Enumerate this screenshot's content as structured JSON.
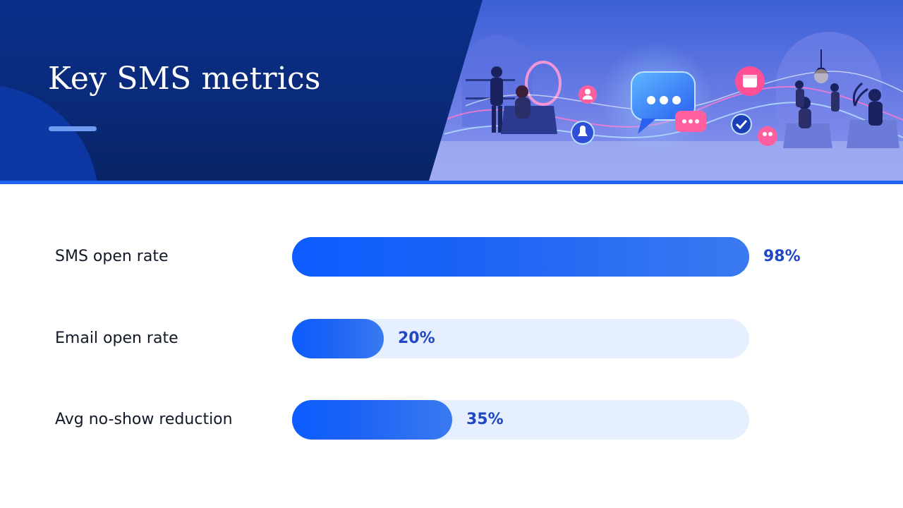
{
  "header": {
    "title": "Key SMS metrics"
  },
  "colors": {
    "header_bg": "#0a2a7a",
    "accent": "#1e62f0",
    "bar_fill": "#1c63f5",
    "track": "#e6effd",
    "value_text": "#1f47c4",
    "label_text": "#111827"
  },
  "illustration": {
    "icons": [
      "chat-bubble-icon",
      "calendar-icon",
      "bell-icon",
      "user-icon",
      "check-icon",
      "group-icon"
    ]
  },
  "chart_data": {
    "type": "bar",
    "orientation": "horizontal",
    "title": "",
    "xlim": [
      0,
      100
    ],
    "grid": false,
    "categories": [
      "SMS open rate",
      "Email open rate",
      "Avg no-show reduction"
    ],
    "values": [
      98,
      20,
      35
    ],
    "value_labels": [
      "98%",
      "20%",
      "35%"
    ]
  }
}
